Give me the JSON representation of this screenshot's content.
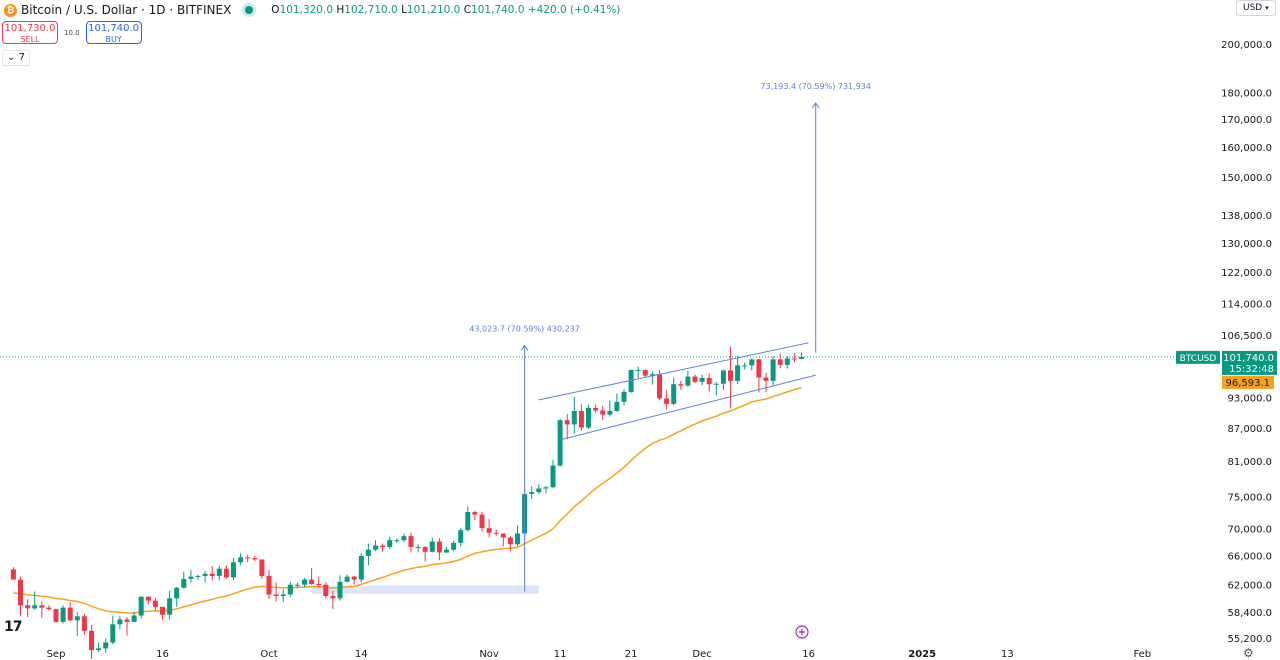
{
  "header": {
    "symbol_title": "Bitcoin / U.S. Dollar · 1D · BITFINEX",
    "ohlc": {
      "o_label": "O",
      "o": "101,320.0",
      "h_label": "H",
      "h": "102,710.0",
      "l_label": "L",
      "l": "101,210.0",
      "c_label": "C",
      "c": "101,740.0",
      "change": "+420.0 (+0.41%)"
    },
    "sell_price": "101,730.0",
    "sell_label": "SELL",
    "spread": "10.0",
    "buy_price": "101,740.0",
    "buy_label": "BUY",
    "indicators_toggle": "7",
    "currency": "USD"
  },
  "colors": {
    "up": "#089981",
    "down": "#f23645",
    "ema": "#f7a21b",
    "drawing": "#5b7fde",
    "background": "#ffffff"
  },
  "chart_data": {
    "type": "candlestick",
    "scale": "log",
    "ylim": [
      55200,
      205000
    ],
    "y_ticks": [
      "200,000.0",
      "180,000.0",
      "170,000.0",
      "160,000.0",
      "150,000.0",
      "138,000.0",
      "130,000.0",
      "122,000.0",
      "114,000.0",
      "106,500.0",
      "93,000.0",
      "87,000.0",
      "81,000.0",
      "75,000.0",
      "70,000.0",
      "66,000.0",
      "62,000.0",
      "58,400.0",
      "55,200.0"
    ],
    "x_ticks": [
      {
        "label": "Sep",
        "date": "2024-09-01"
      },
      {
        "label": "16",
        "date": "2024-09-16"
      },
      {
        "label": "Oct",
        "date": "2024-10-01"
      },
      {
        "label": "14",
        "date": "2024-10-14"
      },
      {
        "label": "Nov",
        "date": "2024-11-01"
      },
      {
        "label": "11",
        "date": "2024-11-11"
      },
      {
        "label": "21",
        "date": "2024-11-21"
      },
      {
        "label": "Dec",
        "date": "2024-12-01"
      },
      {
        "label": "16",
        "date": "2024-12-16"
      },
      {
        "label": "2025",
        "date": "2025-01-01"
      },
      {
        "label": "13",
        "date": "2025-01-13"
      },
      {
        "label": "Feb",
        "date": "2025-02-01"
      }
    ],
    "start_date": "2024-08-26",
    "ohlc": [
      [
        64200,
        64500,
        62800,
        62800
      ],
      [
        62800,
        63200,
        58100,
        59400
      ],
      [
        59400,
        60200,
        57900,
        59000
      ],
      [
        59000,
        61200,
        58800,
        59400
      ],
      [
        59400,
        59900,
        57800,
        59100
      ],
      [
        59100,
        59400,
        58700,
        58900
      ],
      [
        58900,
        59000,
        57200,
        57300
      ],
      [
        57300,
        59400,
        57100,
        59100
      ],
      [
        59100,
        59800,
        57400,
        57500
      ],
      [
        57500,
        58500,
        55600,
        58000
      ],
      [
        58000,
        58300,
        55700,
        56200
      ],
      [
        56200,
        56900,
        52600,
        53900
      ],
      [
        53900,
        54800,
        53700,
        54100
      ],
      [
        54100,
        55300,
        53600,
        54800
      ],
      [
        54800,
        58100,
        54600,
        57000
      ],
      [
        57000,
        58000,
        56400,
        57600
      ],
      [
        57600,
        57900,
        55600,
        57300
      ],
      [
        57300,
        58600,
        57300,
        58100
      ],
      [
        58100,
        60600,
        57700,
        60500
      ],
      [
        60500,
        60600,
        59500,
        60000
      ],
      [
        60000,
        60400,
        58700,
        59200
      ],
      [
        59200,
        59200,
        57500,
        58200
      ],
      [
        58200,
        61300,
        57600,
        60300
      ],
      [
        60300,
        61800,
        59200,
        61700
      ],
      [
        61700,
        63900,
        61600,
        62900
      ],
      [
        62900,
        64100,
        62400,
        63200
      ],
      [
        63200,
        63500,
        62800,
        63300
      ],
      [
        63300,
        64000,
        62400,
        63600
      ],
      [
        63600,
        64700,
        62700,
        63300
      ],
      [
        63300,
        64700,
        62700,
        64300
      ],
      [
        64300,
        64800,
        62900,
        63100
      ],
      [
        63100,
        65800,
        62700,
        65200
      ],
      [
        65200,
        66500,
        64800,
        65900
      ],
      [
        65900,
        66300,
        65200,
        65800
      ],
      [
        65800,
        66100,
        65400,
        65600
      ],
      [
        65600,
        65600,
        62900,
        63300
      ],
      [
        63300,
        64100,
        60200,
        60800
      ],
      [
        60800,
        62400,
        59900,
        60600
      ],
      [
        60600,
        61500,
        59800,
        60800
      ],
      [
        60800,
        62500,
        60500,
        62100
      ],
      [
        62100,
        62400,
        61700,
        62100
      ],
      [
        62100,
        63000,
        61800,
        62800
      ],
      [
        62800,
        64400,
        62100,
        62200
      ],
      [
        62200,
        63200,
        61800,
        62100
      ],
      [
        62100,
        62500,
        60300,
        60600
      ],
      [
        60600,
        61300,
        58900,
        60300
      ],
      [
        60300,
        63400,
        60000,
        62500
      ],
      [
        62500,
        63500,
        62400,
        63200
      ],
      [
        63200,
        63300,
        62100,
        62800
      ],
      [
        62800,
        66500,
        62400,
        66100
      ],
      [
        66100,
        67900,
        64800,
        67000
      ],
      [
        67000,
        68400,
        66800,
        67600
      ],
      [
        67600,
        67900,
        66700,
        67400
      ],
      [
        67400,
        68900,
        67100,
        68400
      ],
      [
        68400,
        68700,
        68000,
        68400
      ],
      [
        68400,
        69400,
        68100,
        69000
      ],
      [
        69000,
        69500,
        66600,
        67400
      ],
      [
        67400,
        67800,
        66600,
        67400
      ],
      [
        67400,
        67500,
        65300,
        66700
      ],
      [
        66700,
        68800,
        66600,
        68200
      ],
      [
        68200,
        68700,
        65500,
        66600
      ],
      [
        66600,
        67400,
        66500,
        67000
      ],
      [
        67000,
        68300,
        66800,
        68000
      ],
      [
        68000,
        70200,
        67500,
        69900
      ],
      [
        69900,
        73600,
        69700,
        72700
      ],
      [
        72700,
        72900,
        71400,
        72300
      ],
      [
        72300,
        72700,
        69700,
        70200
      ],
      [
        70200,
        71600,
        68800,
        69500
      ],
      [
        69500,
        70000,
        69000,
        69400
      ],
      [
        69400,
        69400,
        67500,
        68800
      ],
      [
        68800,
        69000,
        66800,
        67800
      ],
      [
        67800,
        70600,
        67500,
        69400
      ],
      [
        69400,
        76400,
        69300,
        75600
      ],
      [
        75600,
        76900,
        74800,
        75900
      ],
      [
        75900,
        77200,
        75600,
        76500
      ],
      [
        76500,
        76900,
        75700,
        76700
      ],
      [
        76700,
        81400,
        76600,
        80400
      ],
      [
        80400,
        89000,
        80200,
        88700
      ],
      [
        88700,
        89900,
        85100,
        87900
      ],
      [
        87900,
        93300,
        86200,
        90500
      ],
      [
        90500,
        91800,
        86700,
        87300
      ],
      [
        87300,
        91800,
        87000,
        91100
      ],
      [
        91100,
        91800,
        90100,
        90600
      ],
      [
        90600,
        91500,
        88800,
        89800
      ],
      [
        89800,
        92600,
        89400,
        90500
      ],
      [
        90500,
        94000,
        90400,
        92300
      ],
      [
        92300,
        94900,
        91600,
        94300
      ],
      [
        94300,
        99000,
        94100,
        98900
      ],
      [
        98900,
        99600,
        97200,
        98900
      ],
      [
        98900,
        99000,
        97300,
        97700
      ],
      [
        97700,
        98600,
        95800,
        98000
      ],
      [
        98000,
        98900,
        92600,
        93000
      ],
      [
        93000,
        94600,
        90800,
        91900
      ],
      [
        91900,
        97300,
        91600,
        95900
      ],
      [
        95900,
        96600,
        94700,
        95600
      ],
      [
        95600,
        98700,
        95400,
        97500
      ],
      [
        97500,
        97900,
        96100,
        96400
      ],
      [
        96400,
        97900,
        95700,
        97200
      ],
      [
        97200,
        98200,
        94400,
        95900
      ],
      [
        95900,
        96300,
        93600,
        96000
      ],
      [
        96000,
        99000,
        94700,
        98800
      ],
      [
        98800,
        104000,
        91000,
        96600
      ],
      [
        96600,
        101900,
        95900,
        99900
      ],
      [
        99900,
        100500,
        99000,
        99900
      ],
      [
        99900,
        101400,
        98800,
        101200
      ],
      [
        101200,
        101300,
        94200,
        97300
      ],
      [
        97300,
        98300,
        94300,
        96600
      ],
      [
        96600,
        101900,
        95700,
        101200
      ],
      [
        101200,
        102500,
        99300,
        100000
      ],
      [
        100000,
        101900,
        99200,
        101400
      ],
      [
        101400,
        102600,
        100600,
        101300
      ],
      [
        101320,
        102710,
        101210,
        101740
      ]
    ],
    "ema_value_label": "96,593.1",
    "last_price_label": "101,740.0",
    "symbol_tag": "BTCUSD",
    "countdown": "15:32:48",
    "drawings": {
      "channel_upper": [
        [
          "2024-11-08",
          92700
        ],
        [
          "2024-12-16",
          104900
        ]
      ],
      "channel_lower": [
        [
          "2024-11-11",
          85000
        ],
        [
          "2024-12-17",
          97800
        ]
      ],
      "measure_1": {
        "date": "2024-11-06",
        "from": 61200,
        "to": 104300,
        "label": "43,023.7 (70.59%) 430,237"
      },
      "measure_2": {
        "date": "2024-12-17",
        "from": 102700,
        "to": 176400,
        "label": "73,193.4 (70.59%) 731,934"
      },
      "zone": {
        "from_date": "2024-10-07",
        "to_date": "2024-11-08",
        "low": 60900,
        "high": 62000
      }
    }
  }
}
